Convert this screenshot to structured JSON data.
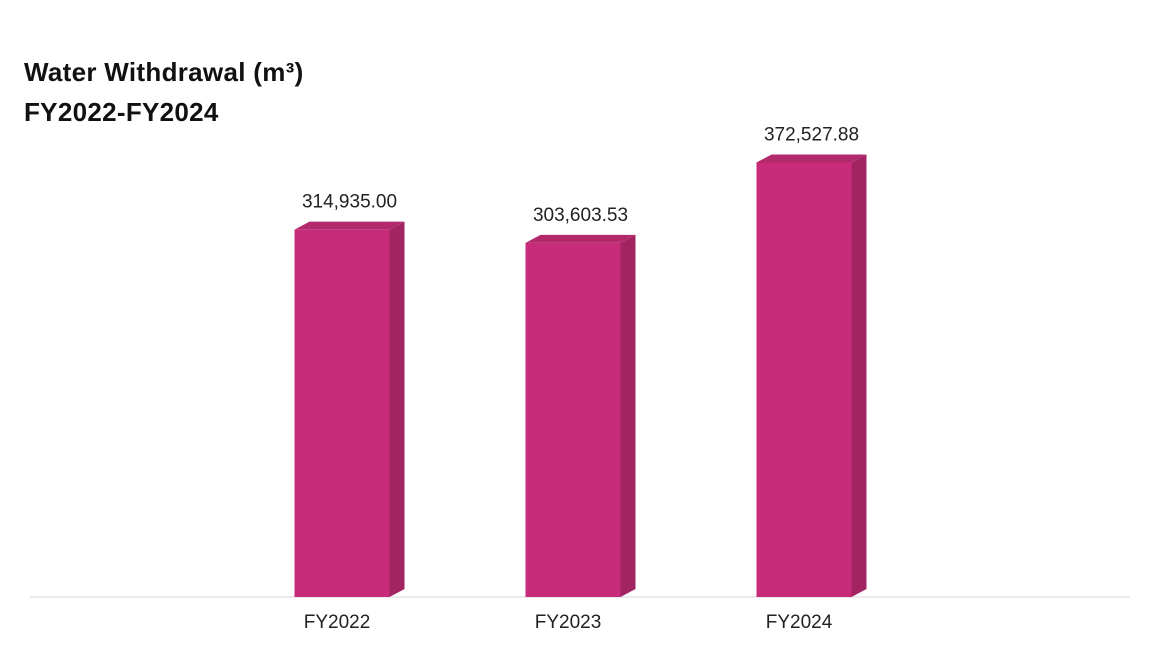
{
  "chart_data": {
    "type": "bar",
    "title": "Water Withdrawal (m³)",
    "subtitle": "FY2022-FY2024",
    "categories": [
      "FY2022",
      "FY2023",
      "FY2024"
    ],
    "values": [
      314935.0,
      303603.53,
      372527.88
    ],
    "data_labels": [
      "314,935.00",
      "303,603.53",
      "372,527.88"
    ],
    "xlabel": "",
    "ylabel": "",
    "ylim": [
      0,
      380000
    ],
    "grid": false,
    "legend": "none",
    "style": "3d-column"
  },
  "colors": {
    "bar_front": "#c82b7a",
    "bar_side": "#a22462",
    "bar_top": "#b22a6c",
    "baseline": "#e3e3e8"
  }
}
